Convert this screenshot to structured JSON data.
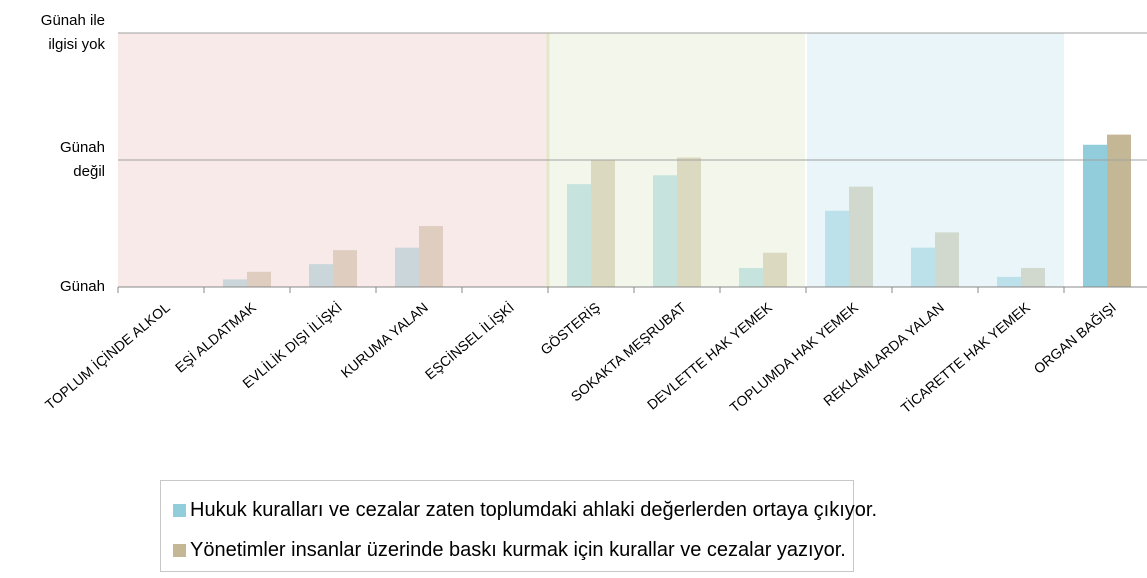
{
  "chart_data": {
    "type": "bar",
    "categories": [
      "TOPLUM İÇİNDE ALKOL",
      "EŞİ ALDATMAK",
      "EVLİLİK DIŞI İLİŞKİ",
      "KURUMA YALAN",
      "EŞCİNSEL İLİŞKİ",
      "GÖSTERİŞ",
      "SOKAKTA MEŞRUBAT",
      "DEVLETTE HAK YEMEK",
      "TOPLUMDA HAK YEMEK",
      "REKLAMLARDA YALAN",
      "TİCARETTE HAK YEMEK",
      "ORGAN BAĞIŞI"
    ],
    "series": [
      {
        "name": "Hukuk kuralları ve cezalar zaten toplumdaki ahlaki değerlerden ortaya çıkıyor.",
        "color": "#92cddc",
        "values": [
          0,
          0.06,
          0.18,
          0.31,
          0,
          0.81,
          0.88,
          0.15,
          0.6,
          0.31,
          0.08,
          1.12
        ]
      },
      {
        "name": "Yönetimler insanlar üzerinde baskı kurmak için kurallar ve cezalar yazıyor.",
        "color": "#c4b796",
        "values": [
          0,
          0.12,
          0.29,
          0.48,
          0,
          1.0,
          1.02,
          0.27,
          0.79,
          0.43,
          0.15,
          1.2
        ]
      }
    ],
    "ylim": [
      0,
      2
    ],
    "yticks": [
      {
        "value": 0,
        "label": "Günah"
      },
      {
        "value": 1,
        "label": "Günah değil"
      },
      {
        "value": 2,
        "label": "Günah ile ilgisi yok"
      }
    ],
    "grid": true
  }
}
